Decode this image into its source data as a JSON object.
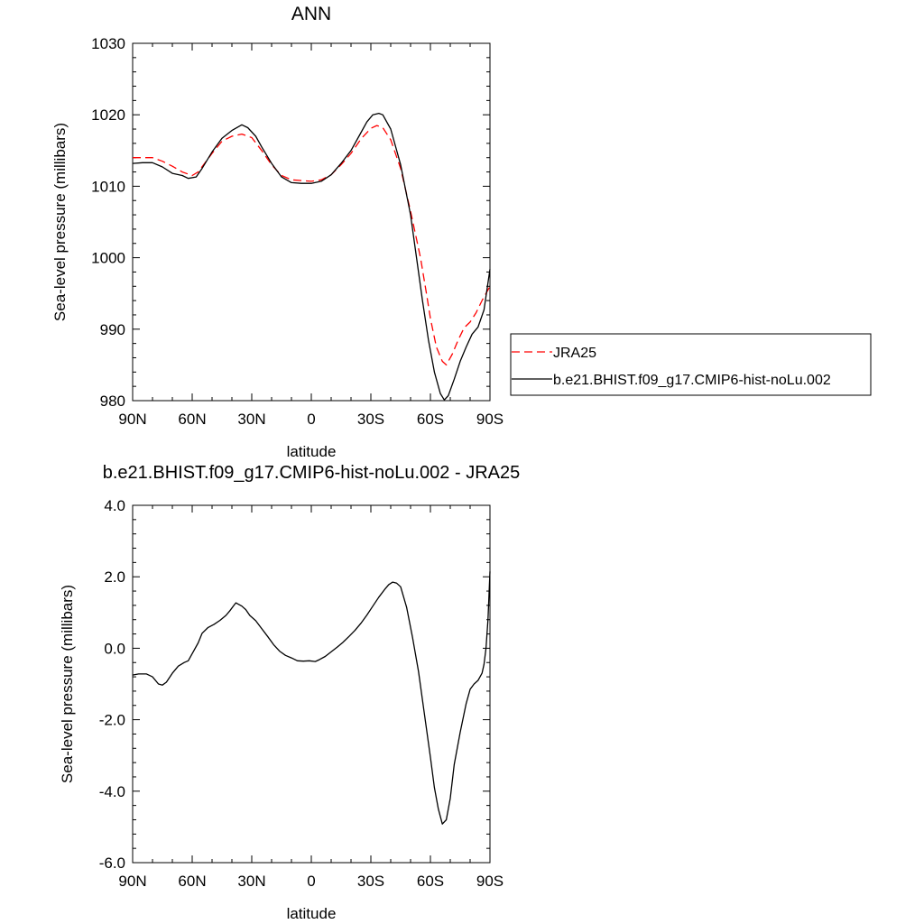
{
  "chart_data": [
    {
      "type": "line",
      "title": "ANN",
      "xlabel": "latitude",
      "ylabel": "Sea-level pressure (millibars)",
      "xlim": [
        90,
        -90
      ],
      "ylim": [
        980,
        1030
      ],
      "x_ticks": [
        {
          "value": 90,
          "label": "90N"
        },
        {
          "value": 60,
          "label": "60N"
        },
        {
          "value": 30,
          "label": "30N"
        },
        {
          "value": 0,
          "label": "0"
        },
        {
          "value": -30,
          "label": "30S"
        },
        {
          "value": -60,
          "label": "60S"
        },
        {
          "value": -90,
          "label": "90S"
        }
      ],
      "y_ticks": [
        {
          "value": 1030,
          "label": "1030"
        },
        {
          "value": 1020,
          "label": "1020"
        },
        {
          "value": 1010,
          "label": "1010"
        },
        {
          "value": 1000,
          "label": "1000"
        },
        {
          "value": 990,
          "label": "990"
        },
        {
          "value": 980,
          "label": "980"
        }
      ],
      "legend_position": "right",
      "series": [
        {
          "name": "JRA25",
          "color": "#ff0000",
          "dash": "dashed",
          "points": [
            [
              90,
              1014
            ],
            [
              85,
              1014
            ],
            [
              80,
              1014
            ],
            [
              75,
              1013.5
            ],
            [
              70,
              1012.8
            ],
            [
              65,
              1012
            ],
            [
              60,
              1011.5
            ],
            [
              57,
              1012
            ],
            [
              50,
              1014.6
            ],
            [
              45,
              1016.3
            ],
            [
              40,
              1017
            ],
            [
              35,
              1017.3
            ],
            [
              30,
              1016.8
            ],
            [
              25,
              1015
            ],
            [
              20,
              1013
            ],
            [
              15,
              1011.5
            ],
            [
              10,
              1010.9
            ],
            [
              5,
              1010.8
            ],
            [
              0,
              1010.7
            ],
            [
              -5,
              1010.9
            ],
            [
              -10,
              1011.6
            ],
            [
              -15,
              1013
            ],
            [
              -20,
              1014.6
            ],
            [
              -25,
              1016.6
            ],
            [
              -30,
              1018.1
            ],
            [
              -33,
              1018.5
            ],
            [
              -36,
              1018.2
            ],
            [
              -40,
              1016.5
            ],
            [
              -45,
              1012.5
            ],
            [
              -50,
              1006.5
            ],
            [
              -55,
              1000
            ],
            [
              -58,
              995
            ],
            [
              -60,
              991.5
            ],
            [
              -63,
              987.5
            ],
            [
              -66,
              985.5
            ],
            [
              -68,
              985
            ],
            [
              -71,
              986.5
            ],
            [
              -74,
              988.5
            ],
            [
              -77,
              990.2
            ],
            [
              -80,
              991
            ],
            [
              -83,
              992.3
            ],
            [
              -86,
              994
            ],
            [
              -90,
              996
            ]
          ]
        },
        {
          "name": "b.e21.BHIST.f09_g17.CMIP6-hist-noLu.002",
          "color": "#000000",
          "dash": "solid",
          "points": [
            [
              90,
              1013.2
            ],
            [
              85,
              1013.3
            ],
            [
              80,
              1013.3
            ],
            [
              75,
              1012.7
            ],
            [
              70,
              1011.8
            ],
            [
              65,
              1011.5
            ],
            [
              62,
              1011.1
            ],
            [
              58,
              1011.3
            ],
            [
              55,
              1012.5
            ],
            [
              50,
              1014.8
            ],
            [
              45,
              1016.7
            ],
            [
              40,
              1017.8
            ],
            [
              35,
              1018.6
            ],
            [
              32,
              1018.2
            ],
            [
              28,
              1017
            ],
            [
              25,
              1015.5
            ],
            [
              20,
              1013.2
            ],
            [
              15,
              1011.3
            ],
            [
              10,
              1010.5
            ],
            [
              5,
              1010.4
            ],
            [
              0,
              1010.4
            ],
            [
              -5,
              1010.7
            ],
            [
              -10,
              1011.6
            ],
            [
              -15,
              1013.2
            ],
            [
              -20,
              1015
            ],
            [
              -25,
              1017.5
            ],
            [
              -28,
              1019
            ],
            [
              -31,
              1020
            ],
            [
              -34,
              1020.2
            ],
            [
              -36,
              1020
            ],
            [
              -40,
              1018
            ],
            [
              -45,
              1013
            ],
            [
              -50,
              1006
            ],
            [
              -53,
              1000
            ],
            [
              -56,
              994
            ],
            [
              -59,
              988.5
            ],
            [
              -62,
              984
            ],
            [
              -65,
              981
            ],
            [
              -67,
              980.1
            ],
            [
              -69,
              980.7
            ],
            [
              -72,
              983
            ],
            [
              -75,
              985.5
            ],
            [
              -78,
              987.5
            ],
            [
              -81,
              989.3
            ],
            [
              -84,
              990.3
            ],
            [
              -87,
              992.7
            ],
            [
              -90,
              998.4
            ]
          ]
        }
      ]
    },
    {
      "type": "line",
      "title": "b.e21.BHIST.f09_g17.CMIP6-hist-noLu.002 - JRA25",
      "xlabel": "latitude",
      "ylabel": "Sea-level pressure (millibars)",
      "xlim": [
        90,
        -90
      ],
      "ylim": [
        -6,
        4
      ],
      "x_ticks": [
        {
          "value": 90,
          "label": "90N"
        },
        {
          "value": 60,
          "label": "60N"
        },
        {
          "value": 30,
          "label": "30N"
        },
        {
          "value": 0,
          "label": "0"
        },
        {
          "value": -30,
          "label": "30S"
        },
        {
          "value": -60,
          "label": "60S"
        },
        {
          "value": -90,
          "label": "90S"
        }
      ],
      "y_ticks": [
        {
          "value": 4,
          "label": "4.0"
        },
        {
          "value": 2,
          "label": "2.0"
        },
        {
          "value": 0,
          "label": "0.0"
        },
        {
          "value": -2,
          "label": "-2.0"
        },
        {
          "value": -4,
          "label": "-4.0"
        },
        {
          "value": -6,
          "label": "-6.0"
        }
      ],
      "series": [
        {
          "color": "#000000",
          "dash": "solid",
          "points": [
            [
              90,
              -0.75
            ],
            [
              87,
              -0.72
            ],
            [
              83,
              -0.72
            ],
            [
              80,
              -0.8
            ],
            [
              77,
              -1.0
            ],
            [
              75,
              -1.03
            ],
            [
              73,
              -0.95
            ],
            [
              70,
              -0.7
            ],
            [
              67,
              -0.5
            ],
            [
              64,
              -0.4
            ],
            [
              62,
              -0.35
            ],
            [
              59,
              -0.05
            ],
            [
              57,
              0.15
            ],
            [
              55,
              0.42
            ],
            [
              52,
              0.58
            ],
            [
              49,
              0.67
            ],
            [
              46,
              0.78
            ],
            [
              43,
              0.92
            ],
            [
              41,
              1.05
            ],
            [
              39,
              1.2
            ],
            [
              38,
              1.27
            ],
            [
              35,
              1.18
            ],
            [
              33,
              1.08
            ],
            [
              31,
              0.92
            ],
            [
              28,
              0.77
            ],
            [
              25,
              0.55
            ],
            [
              22,
              0.33
            ],
            [
              19,
              0.1
            ],
            [
              16,
              -0.08
            ],
            [
              13,
              -0.2
            ],
            [
              10,
              -0.27
            ],
            [
              7,
              -0.35
            ],
            [
              4,
              -0.36
            ],
            [
              1,
              -0.35
            ],
            [
              -2,
              -0.37
            ],
            [
              -4,
              -0.32
            ],
            [
              -7,
              -0.23
            ],
            [
              -10,
              -0.1
            ],
            [
              -13,
              0.03
            ],
            [
              -16,
              0.17
            ],
            [
              -19,
              0.33
            ],
            [
              -22,
              0.5
            ],
            [
              -25,
              0.7
            ],
            [
              -28,
              0.93
            ],
            [
              -31,
              1.18
            ],
            [
              -34,
              1.43
            ],
            [
              -37,
              1.65
            ],
            [
              -39,
              1.78
            ],
            [
              -41,
              1.85
            ],
            [
              -43,
              1.82
            ],
            [
              -45,
              1.72
            ],
            [
              -48,
              1.15
            ],
            [
              -51,
              0.3
            ],
            [
              -54,
              -0.65
            ],
            [
              -57,
              -1.85
            ],
            [
              -60,
              -3.05
            ],
            [
              -62,
              -3.9
            ],
            [
              -64,
              -4.5
            ],
            [
              -66,
              -4.92
            ],
            [
              -68,
              -4.8
            ],
            [
              -70,
              -4.2
            ],
            [
              -72,
              -3.25
            ],
            [
              -75,
              -2.35
            ],
            [
              -78,
              -1.55
            ],
            [
              -80,
              -1.15
            ],
            [
              -82,
              -1.0
            ],
            [
              -84,
              -0.9
            ],
            [
              -85,
              -0.8
            ],
            [
              -86,
              -0.7
            ],
            [
              -87,
              -0.45
            ],
            [
              -88,
              0.0
            ],
            [
              -89,
              0.8
            ],
            [
              -90,
              2.15
            ]
          ]
        }
      ]
    }
  ]
}
